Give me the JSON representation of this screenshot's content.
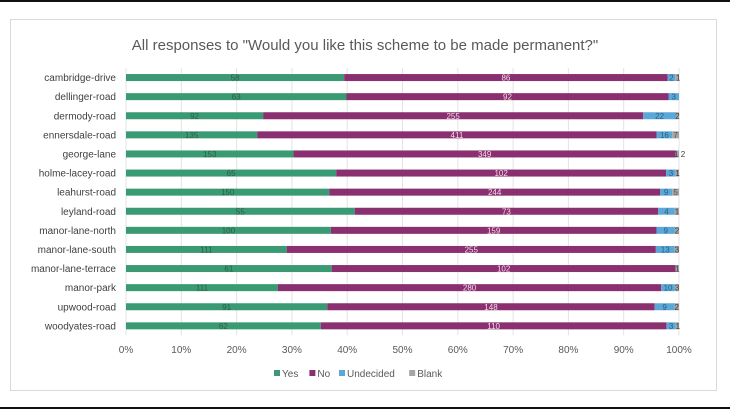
{
  "chart_data": {
    "type": "bar",
    "orientation": "horizontal",
    "stacked": "percent",
    "title": "All responses to \"Would you like this scheme to be made permanent?\"",
    "xlabel": "",
    "ylabel": "",
    "xlim": [
      0,
      100
    ],
    "x_ticks": [
      "0%",
      "10%",
      "20%",
      "30%",
      "40%",
      "50%",
      "60%",
      "70%",
      "80%",
      "90%",
      "100%"
    ],
    "grid": true,
    "legend_position": "bottom",
    "categories": [
      "cambridge-drive",
      "dellinger-road",
      "dermody-road",
      "ennersdale-road",
      "george-lane",
      "holme-lacey-road",
      "leahurst-road",
      "leyland-road",
      "manor-lane-north",
      "manor-lane-south",
      "manor-lane-terrace",
      "manor-park",
      "upwood-road",
      "woodyates-road"
    ],
    "series": [
      {
        "name": "Yes",
        "color": "#3a9a73",
        "label_color": "#2d5e48",
        "values": [
          58,
          63,
          92,
          135,
          153,
          65,
          150,
          55,
          100,
          111,
          61,
          111,
          91,
          62
        ]
      },
      {
        "name": "No",
        "color": "#8a2f6f",
        "label_color": "#f3dbe9",
        "values": [
          86,
          92,
          255,
          411,
          349,
          102,
          244,
          73,
          159,
          255,
          102,
          280,
          148,
          110
        ]
      },
      {
        "name": "Undecided",
        "color": "#5ba7d8",
        "label_color": "#2b5f80",
        "values": [
          2,
          3,
          22,
          16,
          1,
          3,
          9,
          4,
          9,
          13,
          0,
          10,
          9,
          3
        ]
      },
      {
        "name": "Blank",
        "color": "#a5a5a5",
        "label_color": "#555555",
        "values": [
          1,
          0,
          2,
          7,
          2,
          1,
          5,
          1,
          2,
          3,
          1,
          3,
          2,
          1
        ]
      }
    ]
  }
}
